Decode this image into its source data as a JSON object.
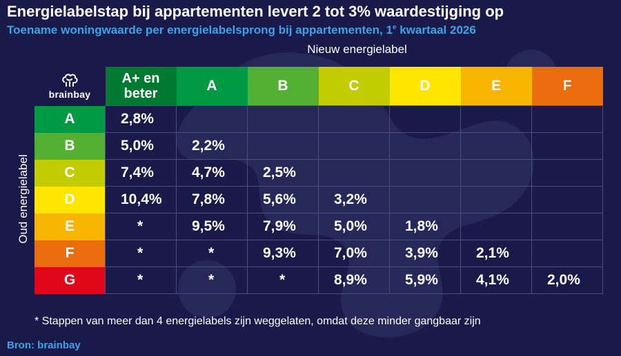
{
  "title": "Energielabelstap bij appartementen levert 2 tot 3% waardestijging op",
  "subtitle": "Toename woningwaarde per energielabelsprong bij appartementen, 1",
  "subtitle_sup": "e",
  "subtitle_end": " kwartaal 2026",
  "logo_text": "brainbay",
  "logo_icon": "brainbay-brain-icon",
  "footnote": "* Stappen van meer dan 4 energielabels zijn weggelaten, omdat deze minder gangbaar zijn",
  "source": "Bron: brainbay",
  "colors": {
    "background": "#1a1a4a",
    "accent": "#3ba4e6",
    "grid_line": "#4a4f7a",
    "label_A_plus": "#007a33",
    "label_A": "#009a44",
    "label_B": "#54b033",
    "label_C": "#c3cc00",
    "label_D": "#ffe600",
    "label_E": "#f7b500",
    "label_F": "#ea6c0d",
    "label_G": "#e2061b"
  },
  "chart_data": {
    "type": "table",
    "title": "Energielabelstap bij appartementen levert 2 tot 3% waardestijging op",
    "subtitle": "Toename woningwaarde per energielabelsprong bij appartementen, 1e kwartaal 2026",
    "column_axis_label": "Nieuw energielabel",
    "row_axis_label": "Oud energielabel",
    "columns": [
      {
        "label": "A+ en beter",
        "color": "#007a33"
      },
      {
        "label": "A",
        "color": "#009a44"
      },
      {
        "label": "B",
        "color": "#54b033"
      },
      {
        "label": "C",
        "color": "#c3cc00"
      },
      {
        "label": "D",
        "color": "#ffe600"
      },
      {
        "label": "E",
        "color": "#f7b500"
      },
      {
        "label": "F",
        "color": "#ea6c0d"
      }
    ],
    "rows": [
      {
        "label": "A",
        "color": "#009a44",
        "values": [
          "2,8%",
          "",
          "",
          "",
          "",
          "",
          ""
        ]
      },
      {
        "label": "B",
        "color": "#54b033",
        "values": [
          "5,0%",
          "2,2%",
          "",
          "",
          "",
          "",
          ""
        ]
      },
      {
        "label": "C",
        "color": "#c3cc00",
        "values": [
          "7,4%",
          "4,7%",
          "2,5%",
          "",
          "",
          "",
          ""
        ]
      },
      {
        "label": "D",
        "color": "#ffe600",
        "values": [
          "10,4%",
          "7,8%",
          "5,6%",
          "3,2%",
          "",
          "",
          ""
        ]
      },
      {
        "label": "E",
        "color": "#f7b500",
        "values": [
          "*",
          "9,5%",
          "7,9%",
          "5,0%",
          "1,8%",
          "",
          ""
        ]
      },
      {
        "label": "F",
        "color": "#ea6c0d",
        "values": [
          "*",
          "*",
          "9,3%",
          "7,0%",
          "3,9%",
          "2,1%",
          ""
        ]
      },
      {
        "label": "G",
        "color": "#e2061b",
        "values": [
          "*",
          "*",
          "*",
          "8,9%",
          "5,9%",
          "4,1%",
          "2,0%"
        ]
      }
    ]
  }
}
